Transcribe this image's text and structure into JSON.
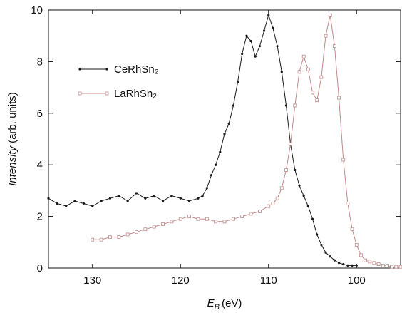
{
  "chart_data": {
    "type": "line",
    "ylabel": {
      "emphasis": "Intensity",
      "rest": "(arb. units)"
    },
    "xlabel": {
      "symbol": "E",
      "subscript": "B",
      "unit": "(eV)"
    },
    "xlim": [
      135,
      95
    ],
    "ylim": [
      0,
      10
    ],
    "xticks": [
      130,
      120,
      110,
      100
    ],
    "yticks": [
      0,
      2,
      4,
      6,
      8,
      10
    ],
    "legend": "upper left",
    "series": [
      {
        "name": "CeRhSn₂",
        "color": "#1a1a1a",
        "marker": "circle",
        "x": [
          135,
          134,
          133,
          132,
          131,
          130,
          129,
          128,
          127,
          126,
          125,
          124,
          123,
          122,
          121,
          120,
          119,
          118,
          117.5,
          117,
          116.5,
          116,
          115.5,
          115,
          114.5,
          114,
          113.5,
          113,
          112.5,
          112,
          111.5,
          111,
          110.5,
          110,
          109.5,
          109,
          108.5,
          108,
          107.5,
          107,
          106.5,
          106,
          105.5,
          105,
          104.5,
          104,
          103.5,
          103,
          102.5,
          102,
          101.5,
          101,
          100.5,
          100
        ],
        "values": [
          2.7,
          2.5,
          2.4,
          2.6,
          2.5,
          2.4,
          2.6,
          2.7,
          2.8,
          2.6,
          2.9,
          2.7,
          2.8,
          2.6,
          2.8,
          2.7,
          2.6,
          2.7,
          2.8,
          3.1,
          3.6,
          4.0,
          4.5,
          5.2,
          5.6,
          6.3,
          7.2,
          8.3,
          9.0,
          8.8,
          8.2,
          8.6,
          9.2,
          9.8,
          9.3,
          8.6,
          7.6,
          6.3,
          4.8,
          3.8,
          3.2,
          2.8,
          2.4,
          1.9,
          1.3,
          0.9,
          0.6,
          0.45,
          0.3,
          0.2,
          0.15,
          0.1,
          0.1,
          0.1
        ]
      },
      {
        "name": "LaRhSn₂",
        "color": "#c08a8a",
        "marker": "square",
        "x": [
          130,
          129,
          128,
          127,
          126,
          125,
          124,
          123,
          122,
          121,
          120,
          119,
          118,
          117,
          116,
          115,
          114,
          113,
          112,
          111,
          110,
          109.5,
          109,
          108.5,
          108,
          107.5,
          107,
          106.5,
          106,
          105.5,
          105,
          104.5,
          104,
          103.5,
          103,
          102.5,
          102,
          101.5,
          101,
          100.5,
          100,
          99.5,
          99,
          98.5,
          98,
          97.5,
          97,
          96.5,
          96,
          95.5,
          95
        ],
        "values": [
          1.1,
          1.1,
          1.2,
          1.2,
          1.3,
          1.4,
          1.5,
          1.6,
          1.7,
          1.8,
          1.9,
          2.0,
          1.9,
          1.9,
          1.8,
          1.8,
          1.9,
          2.0,
          2.1,
          2.2,
          2.4,
          2.5,
          2.7,
          3.1,
          3.8,
          4.8,
          6.3,
          7.6,
          8.2,
          7.7,
          6.8,
          6.5,
          7.4,
          9.0,
          9.8,
          8.6,
          6.6,
          4.2,
          2.5,
          1.5,
          0.9,
          0.5,
          0.3,
          0.25,
          0.2,
          0.15,
          0.1,
          0.1,
          0.05,
          0.05,
          0.05
        ]
      }
    ]
  }
}
